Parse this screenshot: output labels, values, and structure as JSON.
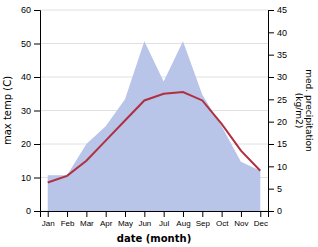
{
  "chart_data": {
    "type": "line",
    "xlabel": "date (month)",
    "ylabel": "max temp (C)",
    "y2label": "med. precipitation\n(kg/m2)",
    "categories": [
      "Jan",
      "Feb",
      "Mar",
      "Apr",
      "May",
      "Jun",
      "Jul",
      "Aug",
      "Sep",
      "Oct",
      "Nov",
      "Dec"
    ],
    "series": [
      {
        "type": "area",
        "axis": "y2",
        "color": "#b8c4e8",
        "values": [
          8,
          8,
          15,
          19,
          25,
          38,
          29,
          38,
          26,
          19,
          11,
          9
        ]
      },
      {
        "type": "line",
        "color": "#b03040",
        "values": [
          8.5,
          10.5,
          15.0,
          21.0,
          27.0,
          33.0,
          35.0,
          35.5,
          33.0,
          26.0,
          18.0,
          12.0
        ]
      }
    ],
    "ylim": [
      0,
      60
    ],
    "yticks": [
      0,
      10,
      20,
      30,
      40,
      50,
      60
    ],
    "y2lim": [
      0,
      45
    ],
    "y2ticks": [
      0,
      5,
      10,
      15,
      20,
      25,
      30,
      35,
      40,
      45
    ],
    "grid": true
  }
}
